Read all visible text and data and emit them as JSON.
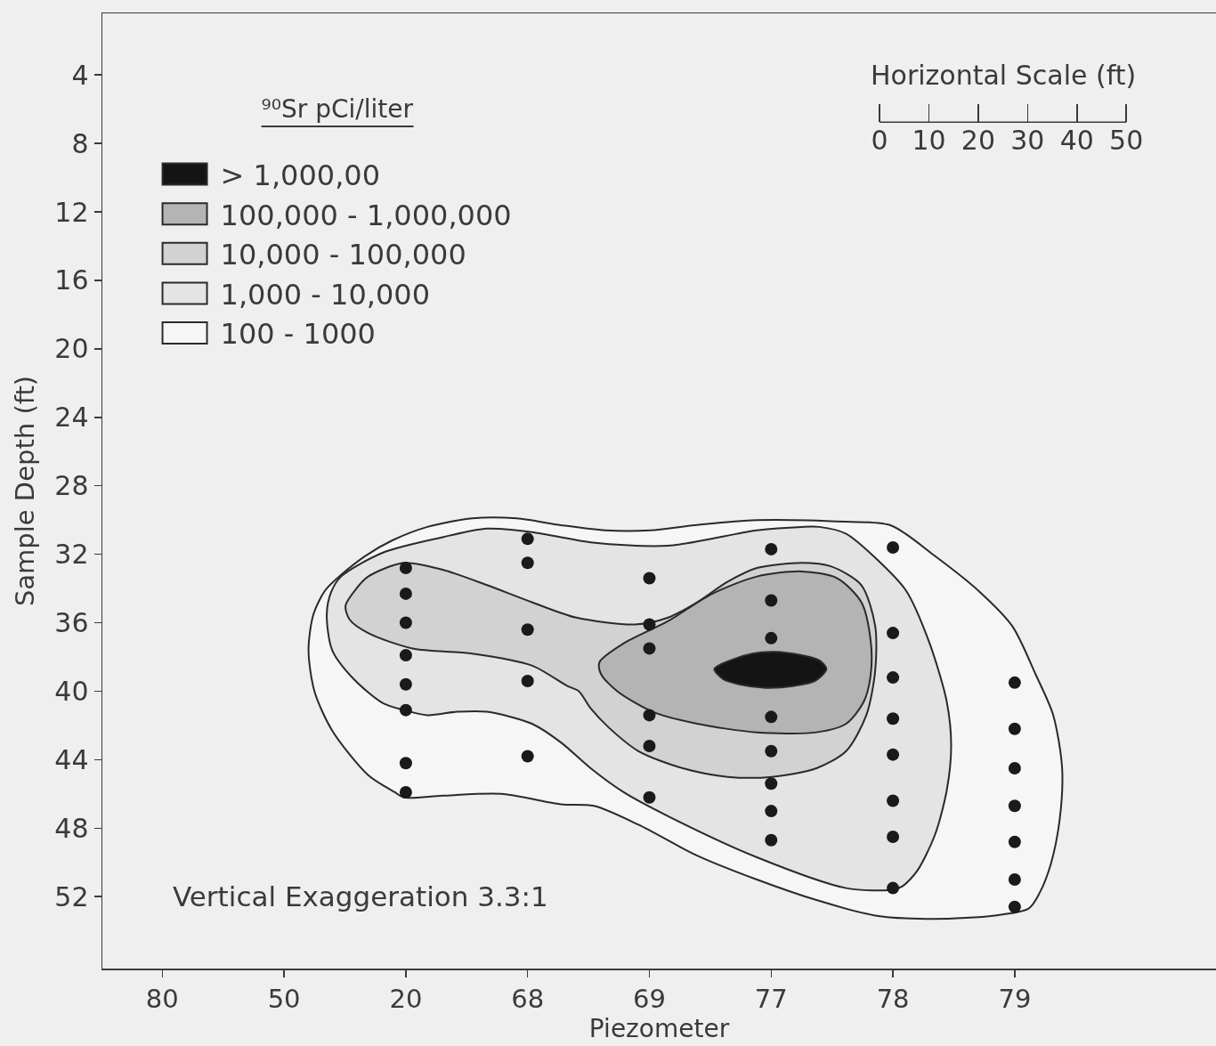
{
  "chart_data": {
    "type": "scatter",
    "xlabel": "Piezometer",
    "ylabel": "Sample Depth (ft)",
    "legend_title": "⁹⁰Sr pCi/liter",
    "x2label": "Horizontal Scale (ft)",
    "annotations": [
      "Vertical Exaggeration 3.3:1"
    ],
    "categories": [
      "80",
      "50",
      "20",
      "68",
      "69",
      "77",
      "78",
      "79"
    ],
    "ylim": [
      56.2,
      0.4
    ],
    "yticks": [
      4,
      8,
      12,
      16,
      20,
      24,
      28,
      32,
      36,
      40,
      44,
      48,
      52
    ],
    "x2lim": [
      -157.6,
      68.2
    ],
    "x2ticks": [
      0,
      10,
      20,
      30,
      40,
      50
    ],
    "legend": "top left",
    "marker": "circle",
    "series": [
      {
        "type": "area",
        "axis": "x2",
        "marker": "none",
        "name": "100 - 1000",
        "color": "#f6f6f6",
        "x": [
          -115.8,
          -114.8,
          -112.4,
          -109.2,
          -104.3,
          -98.9,
          -91.7,
          -82.6,
          -73.6,
          -64.6,
          -55.6,
          -46.5,
          -37.5,
          -24.9,
          -6.8,
          2.2,
          11.2,
          20.3,
          26.9,
          31.6,
          35.2,
          37.0,
          36.5,
          34.7,
          32.4,
          30.2,
          23.3,
          11.2,
          -0.9,
          -12.8,
          -24.9,
          -37.0,
          -48.9,
          -57.9,
          -64.6,
          -76.7,
          -88.6,
          -96.5,
          -98.3,
          -103.7,
          -111.0,
          -114.6,
          -115.8
        ],
        "values": [
          37.6,
          35.5,
          34.1,
          33.2,
          32.1,
          31.2,
          30.4,
          29.9,
          29.9,
          30.3,
          30.6,
          30.6,
          30.3,
          30.0,
          30.1,
          30.3,
          32.1,
          34.2,
          36.2,
          39.0,
          41.4,
          44.5,
          47.5,
          50.1,
          51.8,
          52.7,
          53.1,
          53.3,
          53.1,
          52.2,
          51.0,
          49.6,
          47.8,
          46.7,
          46.6,
          46.0,
          46.1,
          46.2,
          45.9,
          44.9,
          42.3,
          40.0,
          37.6
        ]
      },
      {
        "type": "area",
        "axis": "x2",
        "marker": "none",
        "name": "1,000 - 10,000",
        "color": "#e4e4e4",
        "x": [
          -109.2,
          -100.7,
          -88.6,
          -79.6,
          -70.5,
          -58.6,
          -42.9,
          -24.9,
          -15.8,
          -12.2,
          -6.8,
          -0.9,
          5.3,
          10.0,
          13.6,
          14.5,
          13.6,
          11.2,
          7.6,
          4.6,
          2.7,
          -6.8,
          -24.9,
          -42.9,
          -51.9,
          -58.6,
          -64.6,
          -70.5,
          -79.6,
          -85.7,
          -91.7,
          -96.5,
          -100.7,
          -106.6,
          -111.0,
          -112.1,
          -111.2,
          -109.2
        ],
        "values": [
          33.3,
          31.9,
          31.0,
          30.5,
          30.7,
          31.3,
          31.5,
          30.6,
          30.4,
          30.4,
          30.8,
          32.2,
          34.1,
          37.1,
          40.6,
          43.2,
          45.8,
          48.4,
          50.5,
          51.4,
          51.6,
          51.5,
          49.7,
          47.3,
          45.9,
          44.5,
          43.0,
          41.9,
          41.2,
          41.2,
          41.4,
          41.1,
          40.7,
          39.3,
          37.6,
          35.5,
          34.2,
          33.3
        ]
      },
      {
        "type": "area",
        "axis": "x2",
        "marker": "none",
        "name": "10,000 - 100,000",
        "color": "#d2d2d2",
        "x": [
          -108.3,
          -106.1,
          -103.7,
          -96.5,
          -88.6,
          -79.6,
          -70.5,
          -61.5,
          -49.6,
          -42.9,
          -37.0,
          -30.8,
          -24.9,
          -15.8,
          -9.9,
          -3.7,
          -0.9,
          -0.9,
          -2.7,
          -6.8,
          -12.8,
          -21.8,
          -30.8,
          -39.9,
          -48.9,
          -55.0,
          -58.6,
          -61.0,
          -63.3,
          -70.5,
          -82.6,
          -94.7,
          -103.7,
          -107.5,
          -108.3
        ],
        "values": [
          35.0,
          34.0,
          33.3,
          32.5,
          32.9,
          33.8,
          34.8,
          35.7,
          36.1,
          35.7,
          34.8,
          33.6,
          32.8,
          32.5,
          32.7,
          33.8,
          36.2,
          38.8,
          41.4,
          43.5,
          44.5,
          45.0,
          45.0,
          44.5,
          43.5,
          42.1,
          41.0,
          40.0,
          39.7,
          38.5,
          37.8,
          37.5,
          36.6,
          35.8,
          35.0
        ]
      },
      {
        "type": "area",
        "axis": "x2",
        "marker": "none",
        "name": "100,000 - 1,000,000",
        "color": "#b4b4b4",
        "x": [
          -56.8,
          -51.9,
          -42.9,
          -33.9,
          -24.9,
          -15.8,
          -8.6,
          -3.7,
          -1.8,
          -1.8,
          -3.2,
          -6.8,
          -12.8,
          -24.9,
          -37.0,
          -46.0,
          -53.2,
          -56.5,
          -56.8
        ],
        "values": [
          38.3,
          37.2,
          35.9,
          34.3,
          33.3,
          33.0,
          33.4,
          34.8,
          37.1,
          39.0,
          40.6,
          41.9,
          42.4,
          42.4,
          41.9,
          41.2,
          40.0,
          39.0,
          38.3
        ]
      },
      {
        "type": "area",
        "axis": "x2",
        "marker": "none",
        "name": "> 1,000,00",
        "color": "#141414",
        "x": [
          -33.5,
          -30.3,
          -25.8,
          -21.3,
          -15.8,
          -12.2,
          -10.8,
          -13.1,
          -17.6,
          -23.1,
          -28.5,
          -31.7,
          -33.5
        ],
        "values": [
          38.7,
          38.2,
          37.8,
          37.7,
          37.9,
          38.2,
          38.7,
          39.4,
          39.7,
          39.8,
          39.6,
          39.3,
          38.7
        ]
      },
      {
        "color": "#1a1a1a",
        "values": [
          null,
          null,
          32.8,
          31.1,
          33.4,
          31.7,
          31.6,
          39.5
        ]
      },
      {
        "color": "#1a1a1a",
        "values": [
          null,
          null,
          34.3,
          32.5,
          36.1,
          34.7,
          36.6,
          42.2
        ]
      },
      {
        "color": "#1a1a1a",
        "values": [
          null,
          null,
          36.0,
          36.4,
          37.5,
          36.9,
          39.2,
          44.5
        ]
      },
      {
        "color": "#1a1a1a",
        "values": [
          null,
          null,
          37.9,
          39.4,
          41.4,
          41.5,
          41.6,
          46.7
        ]
      },
      {
        "color": "#1a1a1a",
        "values": [
          null,
          null,
          39.6,
          43.8,
          43.2,
          43.5,
          43.7,
          48.8
        ]
      },
      {
        "color": "#1a1a1a",
        "values": [
          null,
          null,
          41.1,
          null,
          46.2,
          45.4,
          46.4,
          51.0
        ]
      },
      {
        "color": "#1a1a1a",
        "values": [
          null,
          null,
          44.2,
          null,
          null,
          47.0,
          48.5,
          52.6
        ]
      },
      {
        "color": "#1a1a1a",
        "values": [
          null,
          null,
          45.9,
          null,
          null,
          48.7,
          51.5,
          null
        ]
      }
    ]
  }
}
